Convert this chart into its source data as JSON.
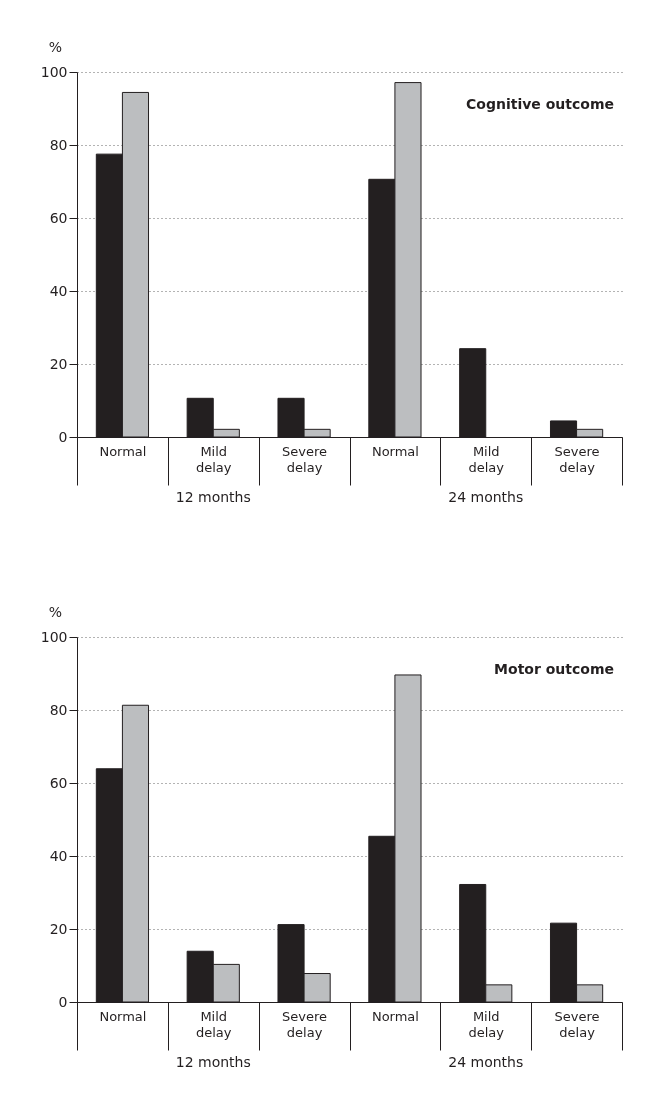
{
  "chart_data": [
    {
      "type": "bar",
      "title": "Cognitive outcome",
      "ylabel": "%",
      "categories": [
        "Normal",
        "Mild delay",
        "Severe delay",
        "Normal",
        "Mild delay",
        "Severe delay"
      ],
      "series": [
        {
          "color": "#231f20",
          "values": [
            77.5,
            10.6,
            10.6,
            70.6,
            24.2,
            4.4
          ]
        },
        {
          "color": "#bcbec0",
          "values": [
            94.4,
            2.1,
            2.1,
            97.1,
            0,
            2.1
          ]
        }
      ],
      "ylim": [
        0,
        100
      ],
      "yticks": [
        0,
        20,
        40,
        60,
        80,
        100
      ],
      "grid": "y",
      "annotations": [
        "12 months",
        "24 months"
      ]
    },
    {
      "type": "bar",
      "title": "Motor outcome",
      "ylabel": "%",
      "categories": [
        "Normal",
        "Mild delay",
        "Severe delay",
        "Normal",
        "Mild delay",
        "Severe delay"
      ],
      "series": [
        {
          "color": "#231f20",
          "values": [
            63.9,
            13.9,
            21.2,
            45.4,
            32.2,
            21.6
          ]
        },
        {
          "color": "#bcbec0",
          "values": [
            81.3,
            10.3,
            7.8,
            89.6,
            4.7,
            4.7
          ]
        }
      ],
      "ylim": [
        0,
        100
      ],
      "yticks": [
        0,
        20,
        40,
        60,
        80,
        100
      ],
      "grid": "y",
      "annotations": [
        "12 months",
        "24 months"
      ]
    }
  ]
}
